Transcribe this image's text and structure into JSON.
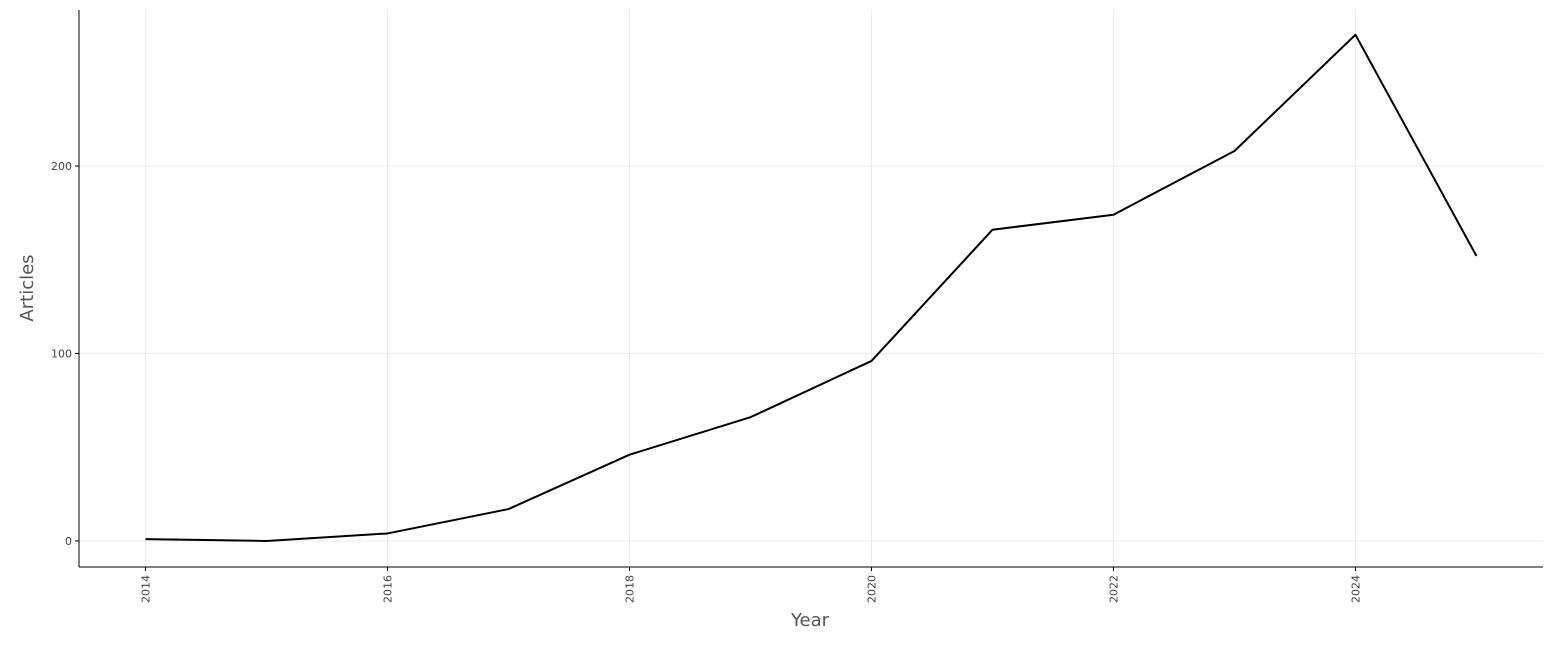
{
  "chart_data": {
    "type": "line",
    "x": [
      2014,
      2015,
      2016,
      2017,
      2018,
      2019,
      2020,
      2021,
      2022,
      2023,
      2024,
      2025
    ],
    "series": [
      {
        "name": "Articles",
        "color": "#000000",
        "values": [
          1,
          0,
          4,
          17,
          46,
          66,
          96,
          166,
          174,
          208,
          270,
          152
        ]
      }
    ],
    "x_label": "Year",
    "y_label": "Articles",
    "xlim": [
      2013.45,
      2025.55
    ],
    "xticks": [
      2014,
      2016,
      2018,
      2020,
      2022,
      2024
    ],
    "ylim": [
      -13.9,
      283.2
    ],
    "yticks": [
      0,
      100,
      200
    ],
    "grid": true
  }
}
